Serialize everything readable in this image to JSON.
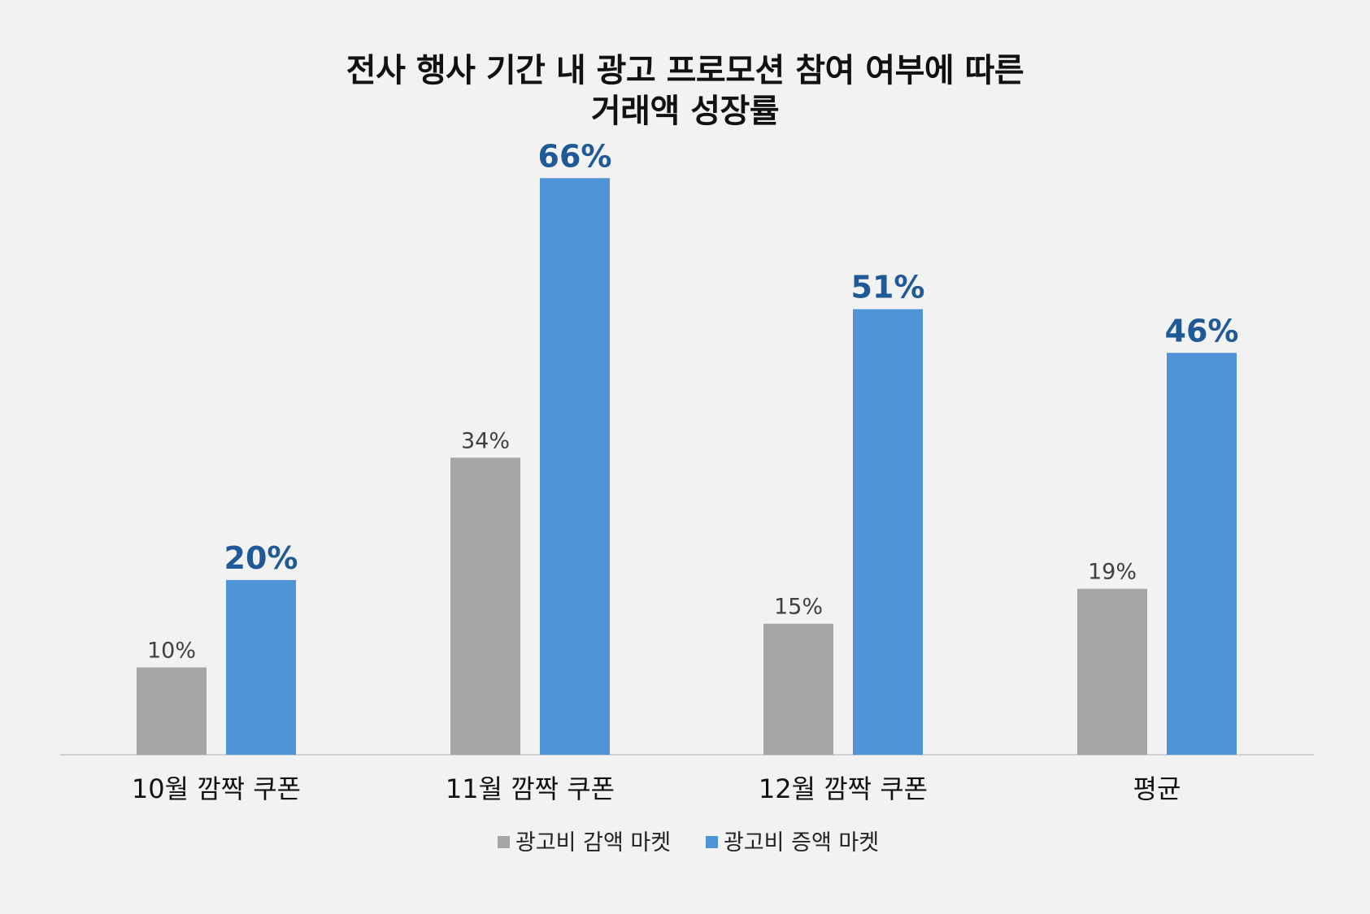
{
  "chart_data": {
    "type": "bar",
    "title": [
      "전사 행사 기간 내 광고 프로모션 참여 여부에 따른",
      "거래액 성장률"
    ],
    "categories": [
      "10월 깜짝 쿠폰",
      "11월 깜짝 쿠폰",
      "12월 깜짝 쿠폰",
      "평균"
    ],
    "series": [
      {
        "name": "광고비 감액 마켓",
        "values": [
          10,
          34,
          15,
          19
        ],
        "labels": [
          "10%",
          "34%",
          "15%",
          "19%"
        ],
        "color": "#a6a6a6",
        "label_color": "#404040",
        "label_bold": false
      },
      {
        "name": "광고비 증액 마켓",
        "values": [
          20,
          66,
          51,
          46
        ],
        "labels": [
          "20%",
          "66%",
          "51%",
          "46%"
        ],
        "color": "#4f94d6",
        "label_color": "#1f5a96",
        "label_bold": true
      }
    ],
    "ylim": [
      0,
      69
    ],
    "grid": false,
    "legend": "bottom",
    "axis_color": "#d0d0d0",
    "background": "#f2f2f2"
  }
}
